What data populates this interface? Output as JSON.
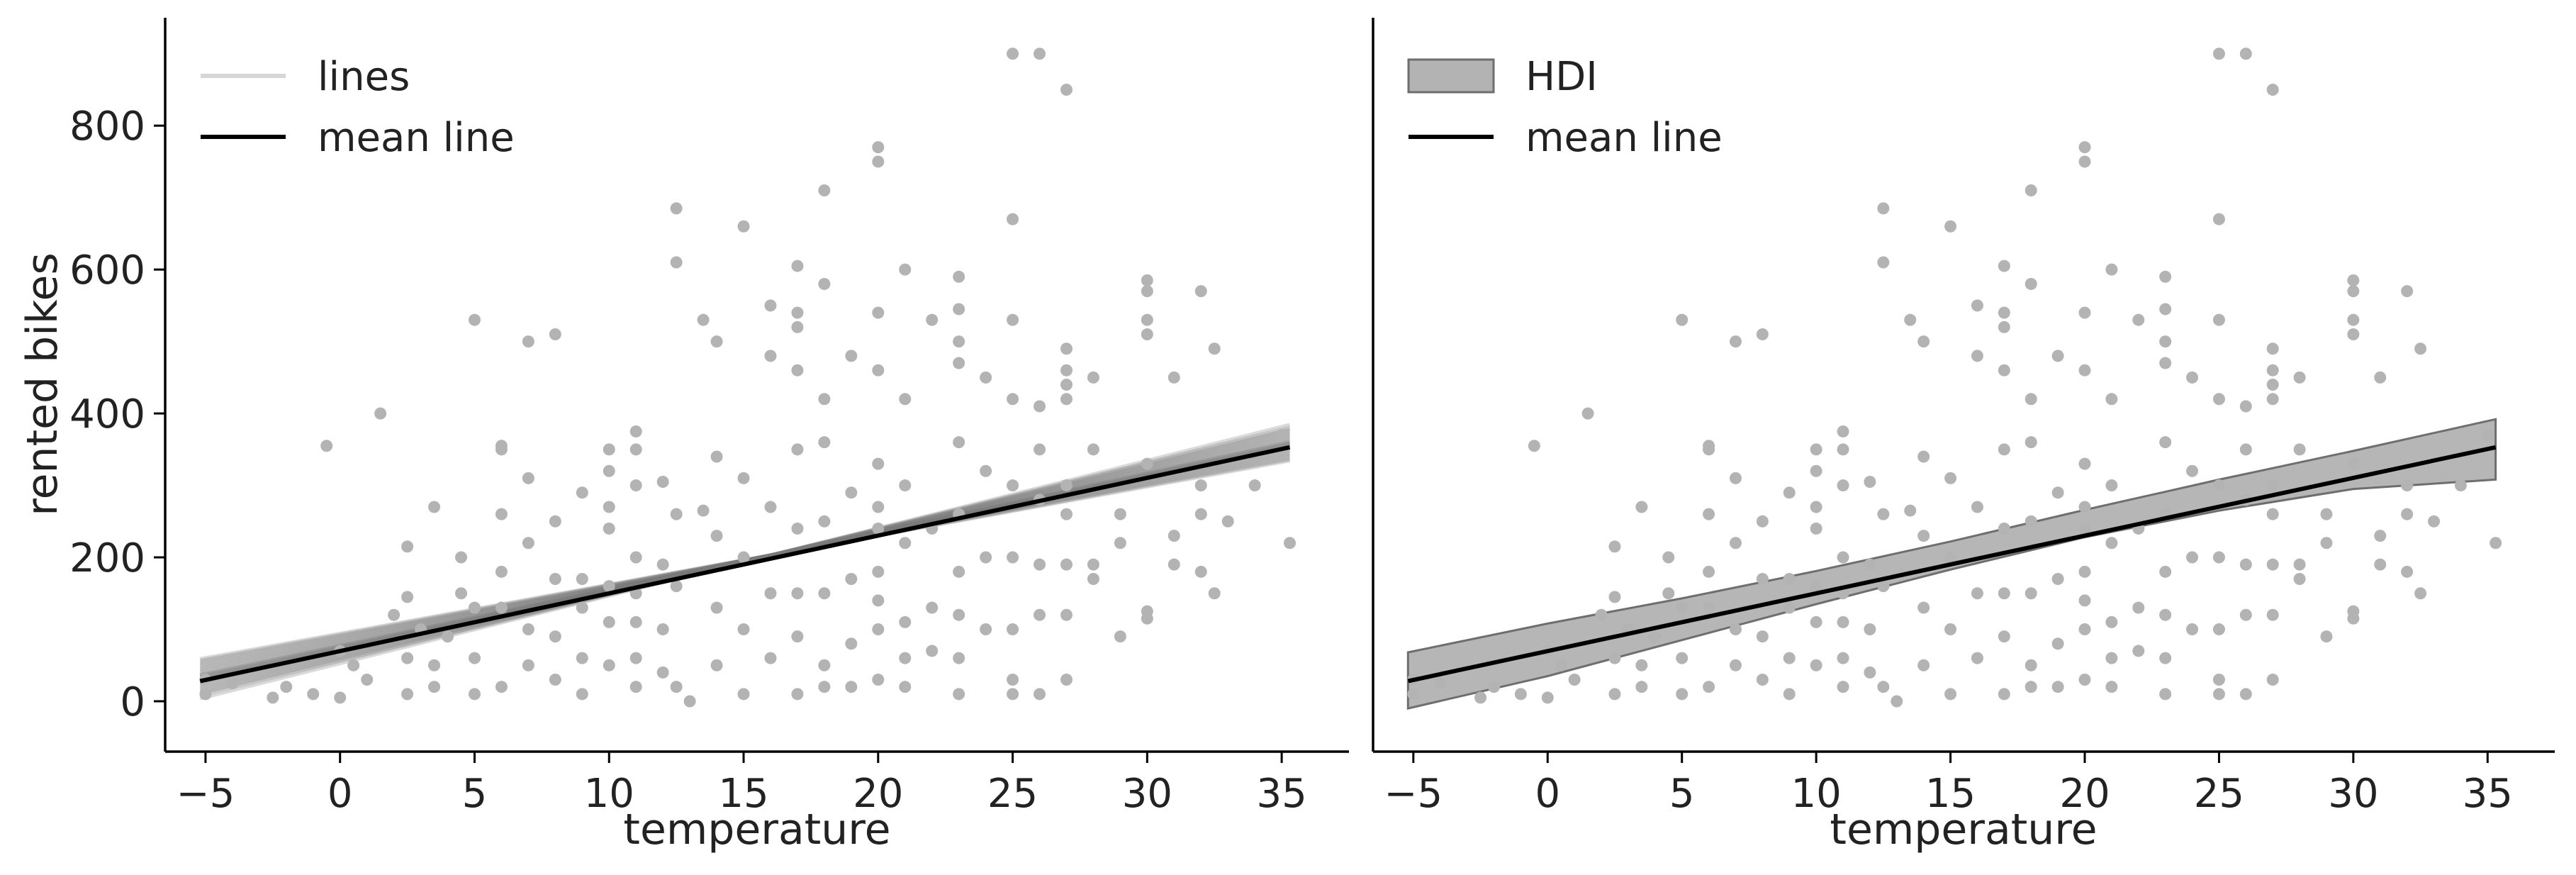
{
  "chart_data": [
    {
      "type": "scatter",
      "xlabel": "temperature",
      "ylabel": "rented bikes",
      "xlim": [
        -6.5,
        37.5
      ],
      "ylim": [
        -70,
        950
      ],
      "xticks": [
        -5,
        0,
        5,
        10,
        15,
        20,
        25,
        30,
        35
      ],
      "xtick_labels": [
        "−5",
        "0",
        "5",
        "10",
        "15",
        "20",
        "25",
        "30",
        "35"
      ],
      "yticks": [
        0,
        200,
        400,
        600,
        800
      ],
      "ytick_labels": [
        "0",
        "200",
        "400",
        "600",
        "800"
      ],
      "legend": {
        "position": "top-left",
        "entries": [
          "lines",
          "mean line"
        ]
      },
      "colors": {
        "points": "#b3b3b3",
        "lines": "#7a7a7a",
        "mean": "#000000"
      },
      "mean_line": {
        "x": [
          -5.2,
          35.3
        ],
        "y": [
          28,
          353
        ]
      },
      "posterior_lines": {
        "pivot": [
          16,
          203
        ],
        "slopes": [
          6.8,
          6.9,
          7.0,
          7.1,
          7.2,
          7.3,
          7.4,
          7.5,
          7.6,
          7.7,
          7.8,
          7.85,
          7.9,
          7.95,
          8.0,
          8.05,
          8.1,
          8.15,
          8.2,
          8.3,
          8.4,
          8.5,
          8.6,
          8.7,
          8.8,
          8.9,
          9.0,
          9.1,
          9.2,
          9.4
        ]
      }
    },
    {
      "type": "scatter",
      "xlabel": "temperature",
      "ylabel": "",
      "xlim": [
        -6.5,
        37.5
      ],
      "ylim": [
        -70,
        950
      ],
      "xticks": [
        -5,
        0,
        5,
        10,
        15,
        20,
        25,
        30,
        35
      ],
      "xtick_labels": [
        "−5",
        "0",
        "5",
        "10",
        "15",
        "20",
        "25",
        "30",
        "35"
      ],
      "yticks": [],
      "legend": {
        "position": "top-left",
        "entries": [
          "HDI",
          "mean line"
        ]
      },
      "colors": {
        "points": "#b3b3b3",
        "hdi_fill": "#9a9a9a",
        "hdi_edge": "#6e6e6e",
        "mean": "#000000"
      },
      "mean_line": {
        "x": [
          -5.2,
          35.3
        ],
        "y": [
          28,
          353
        ]
      },
      "hdi": {
        "x": [
          -5.2,
          0,
          5,
          10,
          15,
          20,
          25,
          30,
          35.3
        ],
        "lower": [
          -10,
          35,
          85,
          135,
          183,
          228,
          265,
          295,
          308
        ],
        "upper": [
          68,
          108,
          143,
          181,
          222,
          266,
          308,
          348,
          392
        ]
      }
    }
  ],
  "points": [
    [
      -5,
      10
    ],
    [
      -5,
      30
    ],
    [
      -4,
      25
    ],
    [
      -2.5,
      5
    ],
    [
      -2,
      20
    ],
    [
      -1,
      10
    ],
    [
      -0.5,
      355
    ],
    [
      0,
      5
    ],
    [
      0,
      70
    ],
    [
      0.5,
      50
    ],
    [
      1,
      30
    ],
    [
      1.5,
      400
    ],
    [
      2,
      120
    ],
    [
      2.5,
      10
    ],
    [
      2.5,
      60
    ],
    [
      2.5,
      145
    ],
    [
      2.5,
      215
    ],
    [
      3,
      100
    ],
    [
      3.5,
      270
    ],
    [
      3.5,
      50
    ],
    [
      3.5,
      20
    ],
    [
      4,
      90
    ],
    [
      4.5,
      150
    ],
    [
      4.5,
      200
    ],
    [
      5,
      10
    ],
    [
      5,
      60
    ],
    [
      5,
      130
    ],
    [
      5,
      530
    ],
    [
      6,
      355
    ],
    [
      6,
      350
    ],
    [
      6,
      260
    ],
    [
      6,
      180
    ],
    [
      6,
      130
    ],
    [
      6,
      20
    ],
    [
      7,
      500
    ],
    [
      7,
      310
    ],
    [
      7,
      220
    ],
    [
      7,
      100
    ],
    [
      7,
      50
    ],
    [
      8,
      510
    ],
    [
      8,
      250
    ],
    [
      8,
      170
    ],
    [
      8,
      90
    ],
    [
      8,
      30
    ],
    [
      9,
      290
    ],
    [
      9,
      170
    ],
    [
      9,
      130
    ],
    [
      9,
      60
    ],
    [
      9,
      10
    ],
    [
      10,
      350
    ],
    [
      10,
      320
    ],
    [
      10,
      270
    ],
    [
      10,
      240
    ],
    [
      10,
      160
    ],
    [
      10,
      110
    ],
    [
      10,
      50
    ],
    [
      11,
      375
    ],
    [
      11,
      350
    ],
    [
      11,
      300
    ],
    [
      11,
      200
    ],
    [
      11,
      150
    ],
    [
      11,
      110
    ],
    [
      11,
      60
    ],
    [
      11,
      20
    ],
    [
      12,
      305
    ],
    [
      12,
      190
    ],
    [
      12,
      100
    ],
    [
      12,
      40
    ],
    [
      12.5,
      610
    ],
    [
      12.5,
      685
    ],
    [
      12.5,
      260
    ],
    [
      12.5,
      160
    ],
    [
      12.5,
      20
    ],
    [
      13,
      0
    ],
    [
      13.5,
      530
    ],
    [
      13.5,
      265
    ],
    [
      14,
      500
    ],
    [
      14,
      340
    ],
    [
      14,
      230
    ],
    [
      14,
      130
    ],
    [
      14,
      50
    ],
    [
      15,
      660
    ],
    [
      15,
      310
    ],
    [
      15,
      200
    ],
    [
      15,
      100
    ],
    [
      15,
      10
    ],
    [
      16,
      550
    ],
    [
      16,
      480
    ],
    [
      16,
      270
    ],
    [
      16,
      150
    ],
    [
      16,
      60
    ],
    [
      17,
      605
    ],
    [
      17,
      540
    ],
    [
      17,
      520
    ],
    [
      17,
      460
    ],
    [
      17,
      350
    ],
    [
      17,
      240
    ],
    [
      17,
      150
    ],
    [
      17,
      90
    ],
    [
      17,
      10
    ],
    [
      18,
      710
    ],
    [
      18,
      580
    ],
    [
      18,
      420
    ],
    [
      18,
      360
    ],
    [
      18,
      250
    ],
    [
      18,
      150
    ],
    [
      18,
      50
    ],
    [
      18,
      20
    ],
    [
      19,
      480
    ],
    [
      19,
      290
    ],
    [
      19,
      170
    ],
    [
      19,
      80
    ],
    [
      19,
      20
    ],
    [
      20,
      770
    ],
    [
      20,
      750
    ],
    [
      20,
      540
    ],
    [
      20,
      460
    ],
    [
      20,
      330
    ],
    [
      20,
      270
    ],
    [
      20,
      240
    ],
    [
      20,
      180
    ],
    [
      20,
      140
    ],
    [
      20,
      100
    ],
    [
      20,
      30
    ],
    [
      21,
      600
    ],
    [
      21,
      420
    ],
    [
      21,
      300
    ],
    [
      21,
      220
    ],
    [
      21,
      110
    ],
    [
      21,
      60
    ],
    [
      21,
      20
    ],
    [
      22,
      530
    ],
    [
      22,
      240
    ],
    [
      22,
      130
    ],
    [
      22,
      70
    ],
    [
      23,
      590
    ],
    [
      23,
      545
    ],
    [
      23,
      500
    ],
    [
      23,
      470
    ],
    [
      23,
      360
    ],
    [
      23,
      260
    ],
    [
      23,
      180
    ],
    [
      23,
      120
    ],
    [
      23,
      60
    ],
    [
      23,
      10
    ],
    [
      24,
      450
    ],
    [
      24,
      320
    ],
    [
      24,
      200
    ],
    [
      24,
      100
    ],
    [
      25,
      900
    ],
    [
      25,
      670
    ],
    [
      25,
      530
    ],
    [
      25,
      420
    ],
    [
      25,
      300
    ],
    [
      25,
      200
    ],
    [
      25,
      100
    ],
    [
      25,
      30
    ],
    [
      25,
      10
    ],
    [
      26,
      900
    ],
    [
      26,
      410
    ],
    [
      26,
      350
    ],
    [
      26,
      280
    ],
    [
      26,
      190
    ],
    [
      26,
      120
    ],
    [
      26,
      10
    ],
    [
      27,
      850
    ],
    [
      27,
      490
    ],
    [
      27,
      460
    ],
    [
      27,
      440
    ],
    [
      27,
      420
    ],
    [
      27,
      300
    ],
    [
      27,
      260
    ],
    [
      27,
      190
    ],
    [
      27,
      120
    ],
    [
      27,
      30
    ],
    [
      28,
      450
    ],
    [
      28,
      350
    ],
    [
      28,
      190
    ],
    [
      28,
      170
    ],
    [
      29,
      260
    ],
    [
      29,
      220
    ],
    [
      29,
      90
    ],
    [
      30,
      585
    ],
    [
      30,
      570
    ],
    [
      30,
      530
    ],
    [
      30,
      510
    ],
    [
      30,
      330
    ],
    [
      30,
      125
    ],
    [
      30,
      115
    ],
    [
      31,
      450
    ],
    [
      31,
      190
    ],
    [
      31,
      230
    ],
    [
      32,
      570
    ],
    [
      32,
      300
    ],
    [
      32,
      260
    ],
    [
      32,
      180
    ],
    [
      32.5,
      150
    ],
    [
      32.5,
      490
    ],
    [
      33,
      250
    ],
    [
      34,
      300
    ],
    [
      35,
      370
    ],
    [
      35.3,
      220
    ]
  ]
}
